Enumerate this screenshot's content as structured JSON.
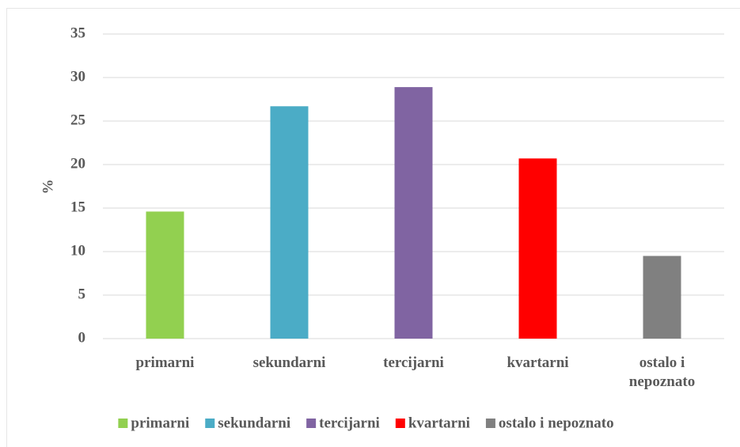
{
  "chart_data": {
    "type": "bar",
    "y_label": "%",
    "categories": [
      "primarni",
      "sekundarni",
      "tercijarni",
      "kvartarni",
      "ostalo i nepoznato"
    ],
    "values": [
      14.6,
      26.7,
      28.9,
      20.7,
      9.5
    ],
    "colors": [
      "#92d050",
      "#4bacc6",
      "#8064a2",
      "#ff0000",
      "#808080"
    ],
    "ylim": [
      0,
      35
    ],
    "yticks": [
      0,
      5,
      10,
      15,
      20,
      25,
      30,
      35
    ],
    "grid": true,
    "legend": "bottom"
  }
}
